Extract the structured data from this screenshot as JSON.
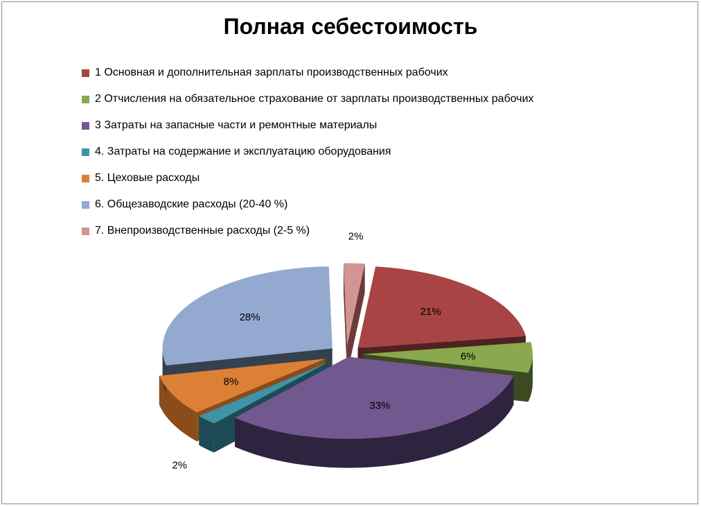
{
  "chart_data": {
    "type": "pie",
    "title": "Полная себестоимость",
    "categories": [
      "1  Основная  и дополнительная  зарплаты  производственных  рабочих",
      "2  Отчисления на обязательное страхование от зарплаты  производственных  рабочих",
      "3  Затраты на запасные  части  и ремонтные  материалы",
      "4.  Затраты  на  содержание  и  эксплуатацию  оборудования",
      "5.  Цеховые  расходы",
      "6.  Общезаводские  расходы (20-40 %)",
      "7.  Внепроизводственные  расходы (2-5 %)"
    ],
    "values": [
      21,
      6,
      33,
      2,
      8,
      28,
      2
    ],
    "data_labels": [
      "21%",
      "6%",
      "33%",
      "2%",
      "8%",
      "28%",
      "2%"
    ],
    "colors": [
      "#a84443",
      "#8aa84d",
      "#71588f",
      "#3e93a8",
      "#dc8036",
      "#94a9d0",
      "#d39494"
    ],
    "side_colors": [
      "#4f2222",
      "#3c4a21",
      "#2f2440",
      "#1d4a55",
      "#8a4c1a",
      "#36414f",
      "#6d3a3a"
    ],
    "legend_position": "top",
    "style": "exploded 3D pie"
  }
}
